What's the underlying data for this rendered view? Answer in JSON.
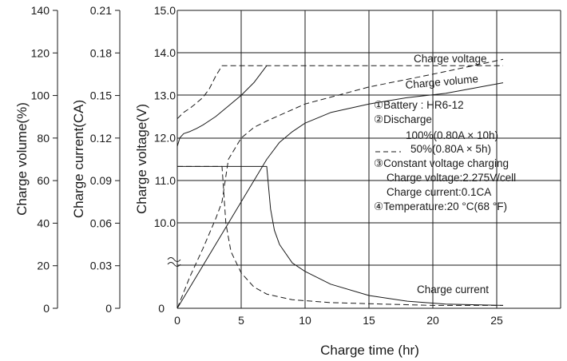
{
  "chart_data": {
    "type": "line",
    "xlabel": "Charge time (hr)",
    "xlim": [
      -1,
      30
    ],
    "x_ticks": [
      "0",
      "5",
      "10",
      "15",
      "20",
      "25"
    ],
    "axes": {
      "volume": {
        "label": "Charge volume(%)",
        "ticks": [
          "0",
          "20",
          "40",
          "60",
          "80",
          "100",
          "120",
          "140"
        ]
      },
      "current": {
        "label": "Charge current(CA)",
        "ticks": [
          "0",
          "0.03",
          "0.06",
          "0.09",
          "0.12",
          "0.15",
          "0.18",
          "0.21"
        ]
      },
      "voltage": {
        "label": "Charge voltage(V)",
        "ticks": [
          "10.0",
          "11.0",
          "12.0",
          "13.0",
          "14.0",
          "15.0"
        ],
        "ylim": [
          10.0,
          15.0
        ],
        "axis_break": true
      }
    },
    "grid": true,
    "series": [
      {
        "name": "Charge voltage",
        "style": "solid",
        "discharge": "100%",
        "axis": "voltage",
        "x": [
          0,
          0.2,
          0.5,
          1,
          1.5,
          2,
          3,
          4,
          5,
          6,
          7
        ],
        "y": [
          11.8,
          12.0,
          12.1,
          12.15,
          12.22,
          12.3,
          12.5,
          12.75,
          13.0,
          13.3,
          13.7
        ]
      },
      {
        "name": "Charge voltage",
        "style": "dashed",
        "discharge": "50%",
        "axis": "voltage",
        "x": [
          0,
          0.5,
          1,
          1.5,
          2,
          2.5,
          3,
          3.5,
          4,
          7,
          25.5
        ],
        "y": [
          12.45,
          12.6,
          12.7,
          12.82,
          12.95,
          13.15,
          13.45,
          13.7,
          13.7,
          13.7,
          13.7
        ]
      },
      {
        "name": "Charge volume",
        "style": "solid",
        "discharge": "100%",
        "axis": "volume",
        "x": [
          0,
          2,
          4,
          6,
          7,
          8,
          9,
          10,
          12,
          15,
          18,
          21,
          25.5
        ],
        "y": [
          0,
          20,
          40,
          60,
          70,
          78,
          83,
          87,
          92,
          96,
          99,
          101,
          106
        ]
      },
      {
        "name": "Charge volume",
        "style": "dashed",
        "discharge": "50%",
        "axis": "volume",
        "x": [
          0,
          1,
          2,
          3,
          3.5,
          4,
          5,
          6,
          7,
          10,
          15,
          20,
          25.5
        ],
        "y": [
          0,
          15,
          28,
          42,
          50,
          70,
          80,
          85,
          88,
          96,
          104,
          110,
          117
        ]
      },
      {
        "name": "Charge current",
        "style": "solid",
        "discharge": "100%",
        "axis": "current",
        "x": [
          0,
          7,
          7.3,
          7.6,
          8,
          9,
          10,
          12,
          15,
          18,
          21,
          25.5
        ],
        "y": [
          0.1,
          0.1,
          0.07,
          0.055,
          0.045,
          0.032,
          0.026,
          0.017,
          0.009,
          0.005,
          0.003,
          0.002
        ]
      },
      {
        "name": "Charge current",
        "style": "dashed",
        "discharge": "50%",
        "axis": "current",
        "x": [
          0,
          3.5,
          3.8,
          4.2,
          5,
          6,
          7,
          9,
          12,
          16,
          20,
          25.5
        ],
        "y": [
          0.1,
          0.1,
          0.06,
          0.04,
          0.025,
          0.015,
          0.01,
          0.006,
          0.004,
          0.003,
          0.002,
          0.002
        ]
      }
    ],
    "curve_labels": {
      "voltage": "Charge voltage",
      "volume": "Charge volume",
      "current": "Charge current"
    },
    "annotation": {
      "battery": "①Battery : HR6-12",
      "discharge": "②Discharge",
      "discharge_100": "100%(0.80A × 10h)",
      "discharge_50": "50%(0.80A × 5h)",
      "cv_title": "③Constant voltage charging",
      "cv_voltage": "Charge voltage:2.275V/cell",
      "cv_current": "Charge current:0.1CA",
      "temperature": "④Temperature:20 °C(68 °F)"
    }
  }
}
